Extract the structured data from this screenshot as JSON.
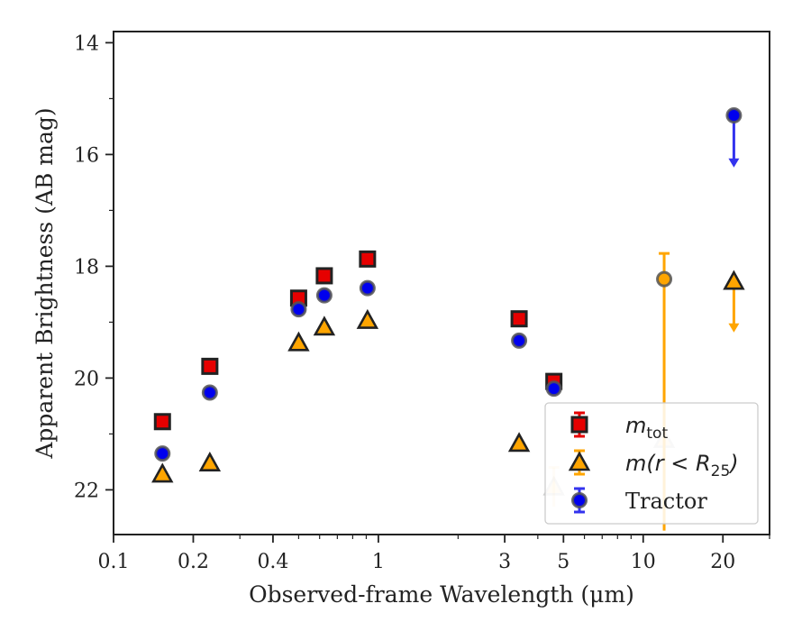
{
  "chart_data": {
    "type": "scatter",
    "xlabel": "Observed-frame Wavelength (μm)",
    "ylabel": "Apparent Brightness (AB mag)",
    "xscale": "log",
    "xlim": [
      0.1,
      30
    ],
    "ylim": [
      22.8,
      13.8
    ],
    "y_inverted": true,
    "xticks": [
      {
        "value": 0.1,
        "label": "0.1"
      },
      {
        "value": 0.2,
        "label": "0.2"
      },
      {
        "value": 0.4,
        "label": "0.4"
      },
      {
        "value": 1,
        "label": "1"
      },
      {
        "value": 3,
        "label": "3"
      },
      {
        "value": 5,
        "label": "5"
      },
      {
        "value": 10,
        "label": "10"
      },
      {
        "value": 20,
        "label": "20"
      }
    ],
    "yticks": [
      {
        "value": 14,
        "label": "14"
      },
      {
        "value": 16,
        "label": "16"
      },
      {
        "value": 18,
        "label": "18"
      },
      {
        "value": 20,
        "label": "20"
      },
      {
        "value": 22,
        "label": "22"
      }
    ],
    "legend_position": "lower-right",
    "series": [
      {
        "name": "m_tot",
        "legend_main": "m",
        "legend_sub": "tot",
        "marker": "square",
        "color": "#e60000",
        "errcolor": "#e60000",
        "points": [
          {
            "x": 0.153,
            "y": 20.78
          },
          {
            "x": 0.231,
            "y": 19.79
          },
          {
            "x": 0.5,
            "y": 18.57
          },
          {
            "x": 0.625,
            "y": 18.17
          },
          {
            "x": 0.91,
            "y": 17.87
          },
          {
            "x": 3.4,
            "y": 18.94
          },
          {
            "x": 4.6,
            "y": 20.06
          }
        ]
      },
      {
        "name": "m(r < R25)",
        "legend_main": "m(r < R",
        "legend_sub": "25",
        "legend_tail": ")",
        "marker": "triangle",
        "color": "#ffa500",
        "errcolor": "#ffa500",
        "points": [
          {
            "x": 0.153,
            "y": 21.72
          },
          {
            "x": 0.231,
            "y": 21.52
          },
          {
            "x": 0.5,
            "y": 19.37
          },
          {
            "x": 0.625,
            "y": 19.09
          },
          {
            "x": 0.91,
            "y": 18.97
          },
          {
            "x": 3.4,
            "y": 21.17
          },
          {
            "x": 4.6,
            "y": 21.95,
            "faded": true,
            "err_low": 0.35,
            "err_high": 0.35
          },
          {
            "x": 12.0,
            "y": 21.1,
            "faded": true
          },
          {
            "x": 22.0,
            "y": 18.27,
            "upper_limit": true,
            "arrow_to": 19.15
          }
        ]
      },
      {
        "name": "Tractor",
        "legend_main": "Tractor",
        "marker": "circle",
        "color": "#0000ee",
        "errcolor": "#3333ee",
        "points": [
          {
            "x": 0.153,
            "y": 21.35
          },
          {
            "x": 0.231,
            "y": 20.26
          },
          {
            "x": 0.5,
            "y": 18.77
          },
          {
            "x": 0.625,
            "y": 18.52
          },
          {
            "x": 0.91,
            "y": 18.39
          },
          {
            "x": 3.4,
            "y": 19.33
          },
          {
            "x": 4.6,
            "y": 20.19
          },
          {
            "x": 12.0,
            "y": 18.23,
            "color": "#ffa500",
            "err_low": 0.46,
            "err_high": 4.5
          },
          {
            "x": 22.0,
            "y": 15.3,
            "upper_limit": true,
            "arrow_to": 16.2
          }
        ]
      }
    ]
  }
}
